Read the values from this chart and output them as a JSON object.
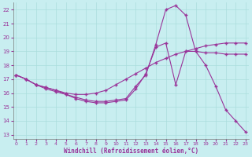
{
  "background_color": "#c8eef0",
  "grid_color": "#aadddd",
  "line_color": "#993399",
  "marker": "+",
  "markersize": 3,
  "linewidth": 0.8,
  "xlabel": "Windchill (Refroidissement éolien,°C)",
  "ylabel_ticks": [
    13,
    14,
    15,
    16,
    17,
    18,
    19,
    20,
    21,
    22
  ],
  "xlabel_ticks": [
    0,
    1,
    2,
    3,
    4,
    5,
    6,
    7,
    8,
    9,
    10,
    11,
    12,
    13,
    14,
    15,
    16,
    17,
    18,
    19,
    20,
    21,
    22,
    23
  ],
  "xlim": [
    -0.3,
    23.3
  ],
  "ylim": [
    12.7,
    22.5
  ],
  "line1_x": [
    0,
    1,
    2,
    3,
    4,
    5,
    6,
    7,
    8,
    9,
    10,
    11,
    12,
    13,
    14,
    15,
    16,
    17,
    18,
    19,
    20,
    21,
    22,
    23
  ],
  "line1_y": [
    17.3,
    17.0,
    16.6,
    16.4,
    16.2,
    15.9,
    15.7,
    15.5,
    15.4,
    15.4,
    15.5,
    15.6,
    16.5,
    17.3,
    19.5,
    22.0,
    22.3,
    21.6,
    19.0,
    18.9,
    18.9,
    18.8,
    18.8,
    18.8
  ],
  "line2_x": [
    0,
    1,
    2,
    3,
    4,
    5,
    6,
    7,
    8,
    9,
    10,
    11,
    12,
    13,
    14,
    15,
    16,
    17,
    18,
    19,
    20,
    21,
    22,
    23
  ],
  "line2_y": [
    17.3,
    17.0,
    16.6,
    16.4,
    16.2,
    16.0,
    15.9,
    15.9,
    16.0,
    16.2,
    16.6,
    17.0,
    17.4,
    17.8,
    18.2,
    18.5,
    18.8,
    19.0,
    19.2,
    19.4,
    19.5,
    19.6,
    19.6,
    19.6
  ],
  "line3_x": [
    0,
    1,
    2,
    3,
    4,
    5,
    6,
    7,
    8,
    9,
    10,
    11,
    12,
    13,
    14,
    15,
    16,
    17,
    18,
    19,
    20,
    21,
    22,
    23
  ],
  "line3_y": [
    17.3,
    17.0,
    16.6,
    16.3,
    16.1,
    15.9,
    15.6,
    15.4,
    15.3,
    15.3,
    15.4,
    15.5,
    16.3,
    17.4,
    19.3,
    19.6,
    16.6,
    19.0,
    19.0,
    18.0,
    16.5,
    14.8,
    14.0,
    13.2
  ]
}
